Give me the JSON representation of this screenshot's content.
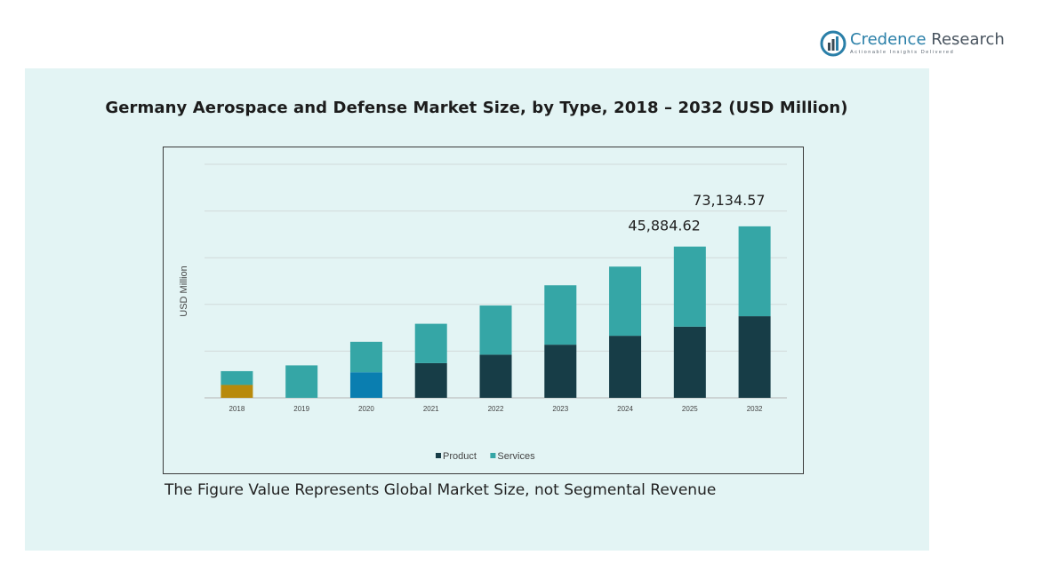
{
  "brand": {
    "name_part1": "Credence",
    "name_part2": "Research",
    "tagline": "Actionable Insights Delivered",
    "color": "#2a7fa8"
  },
  "footnote": "The Figure Value Represents Global Market Size, not Segmental Revenue",
  "chart_data": {
    "type": "bar",
    "stacked": true,
    "title": "Germany Aerospace and Defense Market Size, by Type, 2018 – 2032 (USD Million)",
    "xlabel": "",
    "ylabel": "USD Million",
    "categories": [
      "2018",
      "2019",
      "2020",
      "2021",
      "2022",
      "2023",
      "2024",
      "2025",
      "2032"
    ],
    "series": [
      {
        "name": "Product",
        "color": "#173d47",
        "values": [
          5800,
          0,
          11500,
          15600,
          19400,
          23900,
          27900,
          32000,
          36700
        ]
      },
      {
        "name": "Services",
        "color": "#35a6a6",
        "values": [
          6200,
          14600,
          13700,
          17700,
          22100,
          26700,
          31100,
          36000,
          40400
        ]
      }
    ],
    "bar_color_overrides": {
      "2018": {
        "Product": "#b88a0c"
      },
      "2020": {
        "Product": "#0a7eb0"
      }
    },
    "annotations": [
      {
        "category": "2025",
        "text": "45,884.62"
      },
      {
        "category": "2032",
        "text": "73,134.57"
      }
    ],
    "ylim": [
      0,
      105000
    ],
    "grid": true,
    "legend": "bottom-center"
  }
}
